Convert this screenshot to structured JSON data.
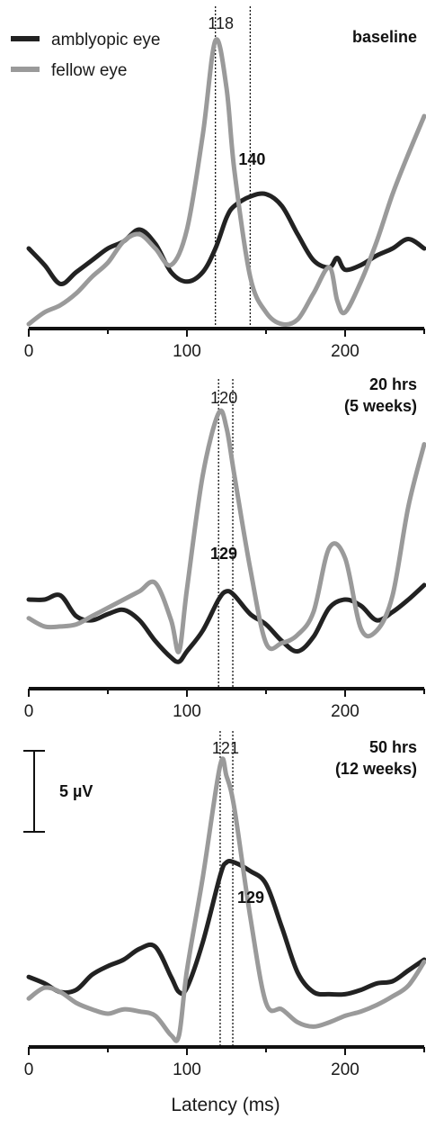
{
  "legend": {
    "amblyopic_label": "amblyopic eye",
    "fellow_label": "fellow eye"
  },
  "axis": {
    "xlabel": "Latency (ms)"
  },
  "scale_bar": {
    "label": "5 µV",
    "value": 5
  },
  "colors": {
    "amblyopic": "#222222",
    "fellow": "#9a9a9a"
  },
  "chart_data": [
    {
      "type": "line",
      "condition_lines": [
        "baseline"
      ],
      "xlim": [
        0,
        250
      ],
      "xticks": [
        0,
        100,
        200
      ],
      "x": [
        0,
        10,
        20,
        30,
        40,
        50,
        60,
        70,
        80,
        90,
        100,
        110,
        118,
        125,
        130,
        140,
        150,
        160,
        170,
        180,
        190,
        195,
        200,
        210,
        220,
        230,
        240,
        250
      ],
      "series": [
        {
          "name": "amblyopic eye",
          "values": [
            3.2,
            2.5,
            1.7,
            2.2,
            2.7,
            3.2,
            3.5,
            4.0,
            3.4,
            2.2,
            1.8,
            2.2,
            3.2,
            4.5,
            5.0,
            5.4,
            5.5,
            5.0,
            3.8,
            2.7,
            2.4,
            2.8,
            2.3,
            2.5,
            2.9,
            3.2,
            3.6,
            3.2
          ]
        },
        {
          "name": "fellow eye",
          "values": [
            0,
            0.5,
            0.8,
            1.3,
            2.0,
            2.6,
            3.5,
            3.8,
            3.2,
            2.5,
            4.0,
            8.0,
            12.0,
            10.0,
            6.5,
            2.0,
            0.5,
            0,
            0.2,
            1.3,
            2.4,
            1.0,
            0.5,
            1.8,
            3.5,
            5.5,
            7.2,
            8.8
          ]
        }
      ],
      "peaks": {
        "fellow": {
          "x": 118,
          "label": "118"
        },
        "amblyopic": {
          "x": 140,
          "label": "140"
        }
      }
    },
    {
      "type": "line",
      "condition_lines": [
        "20 hrs",
        "(5 weeks)"
      ],
      "xlim": [
        0,
        250
      ],
      "xticks": [
        0,
        100,
        200
      ],
      "x": [
        0,
        10,
        20,
        30,
        40,
        50,
        60,
        70,
        80,
        90,
        95,
        100,
        110,
        120,
        125,
        130,
        140,
        150,
        160,
        170,
        180,
        190,
        200,
        210,
        220,
        230,
        240,
        250
      ],
      "series": [
        {
          "name": "amblyopic eye",
          "values": [
            3.0,
            3.0,
            3.2,
            2.2,
            2.0,
            2.3,
            2.5,
            2.0,
            1.0,
            0.2,
            0.0,
            0.5,
            1.5,
            3.0,
            3.4,
            3.2,
            2.3,
            1.8,
            1.0,
            0.5,
            1.2,
            2.6,
            3.0,
            2.7,
            2.0,
            2.4,
            3.0,
            3.7
          ]
        },
        {
          "name": "fellow eye",
          "values": [
            2.1,
            1.7,
            1.7,
            1.8,
            2.2,
            2.6,
            3.0,
            3.4,
            3.8,
            2.0,
            0.5,
            3.5,
            9.0,
            12.0,
            11.3,
            9.0,
            4.5,
            0.9,
            0.9,
            1.3,
            2.4,
            5.5,
            5.0,
            1.6,
            1.5,
            3.2,
            7.5,
            10.5
          ]
        }
      ],
      "peaks": {
        "fellow": {
          "x": 120,
          "label": "120"
        },
        "amblyopic": {
          "x": 129,
          "label": "129"
        }
      }
    },
    {
      "type": "line",
      "condition_lines": [
        "50 hrs",
        "(12 weeks)"
      ],
      "xlim": [
        0,
        250
      ],
      "xticks": [
        0,
        100,
        200
      ],
      "x": [
        0,
        10,
        20,
        30,
        40,
        50,
        60,
        70,
        80,
        90,
        95,
        100,
        110,
        121,
        125,
        130,
        140,
        150,
        160,
        170,
        180,
        190,
        200,
        210,
        220,
        230,
        240,
        250
      ],
      "series": [
        {
          "name": "amblyopic eye",
          "values": [
            2.7,
            2.4,
            2.0,
            2.1,
            2.8,
            3.2,
            3.5,
            4.0,
            4.1,
            2.7,
            2.0,
            2.2,
            4.3,
            7.4,
            8.0,
            8.0,
            7.6,
            7.0,
            5.0,
            2.9,
            2.0,
            1.9,
            1.9,
            2.1,
            2.4,
            2.5,
            3.0,
            3.5
          ]
        },
        {
          "name": "fellow eye",
          "values": [
            1.7,
            2.2,
            2.0,
            1.5,
            1.2,
            1.0,
            1.2,
            1.1,
            0.9,
            0.0,
            0.0,
            3.0,
            7.3,
            12.5,
            12.0,
            10.5,
            5.5,
            1.5,
            1.2,
            0.6,
            0.4,
            0.6,
            0.9,
            1.1,
            1.4,
            1.8,
            2.3,
            3.4
          ]
        }
      ],
      "peaks": {
        "fellow": {
          "x": 121,
          "label": "121"
        },
        "amblyopic": {
          "x": 129,
          "label": "129"
        }
      }
    }
  ]
}
